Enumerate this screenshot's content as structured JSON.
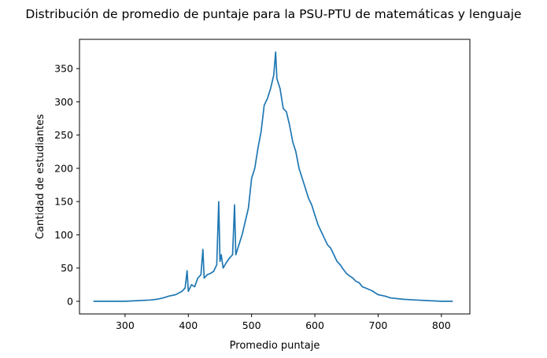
{
  "chart_data": {
    "type": "line",
    "title": "Distribución de promedio de puntaje para la PSU-PTU de matemáticas y lenguaje",
    "xlabel": "Promedio puntaje",
    "ylabel": "Cantidad de estudiantes",
    "xlim": [
      228,
      845
    ],
    "ylim": [
      -19,
      394
    ],
    "xticks": [
      300,
      400,
      500,
      600,
      700,
      800
    ],
    "yticks": [
      0,
      50,
      100,
      150,
      200,
      250,
      300,
      350
    ],
    "grid": false,
    "line_color": "#1f77b4",
    "series": [
      {
        "x": [
          250,
          300,
          320,
          340,
          350,
          360,
          370,
          380,
          390,
          395,
          398,
          400,
          405,
          410,
          415,
          420,
          423,
          425,
          430,
          435,
          440,
          445,
          448,
          450,
          452,
          455,
          460,
          465,
          470,
          473,
          475,
          480,
          485,
          490,
          495,
          500,
          505,
          510,
          515,
          520,
          525,
          530,
          535,
          538,
          540,
          545,
          550,
          555,
          560,
          565,
          570,
          575,
          580,
          585,
          590,
          595,
          600,
          605,
          610,
          615,
          620,
          625,
          630,
          635,
          640,
          645,
          650,
          655,
          660,
          665,
          670,
          675,
          680,
          690,
          700,
          710,
          720,
          740,
          760,
          780,
          800,
          818
        ],
        "y": [
          0,
          0,
          1,
          2,
          3,
          5,
          8,
          10,
          15,
          20,
          46,
          15,
          25,
          22,
          35,
          40,
          78,
          35,
          40,
          42,
          45,
          55,
          150,
          60,
          70,
          50,
          58,
          65,
          70,
          145,
          70,
          85,
          100,
          120,
          140,
          185,
          200,
          230,
          255,
          295,
          305,
          320,
          340,
          375,
          335,
          320,
          290,
          285,
          265,
          240,
          225,
          200,
          185,
          170,
          155,
          145,
          130,
          115,
          105,
          95,
          85,
          80,
          70,
          60,
          55,
          48,
          42,
          38,
          35,
          30,
          28,
          22,
          20,
          16,
          10,
          8,
          5,
          3,
          2,
          1,
          0,
          0
        ]
      }
    ]
  }
}
